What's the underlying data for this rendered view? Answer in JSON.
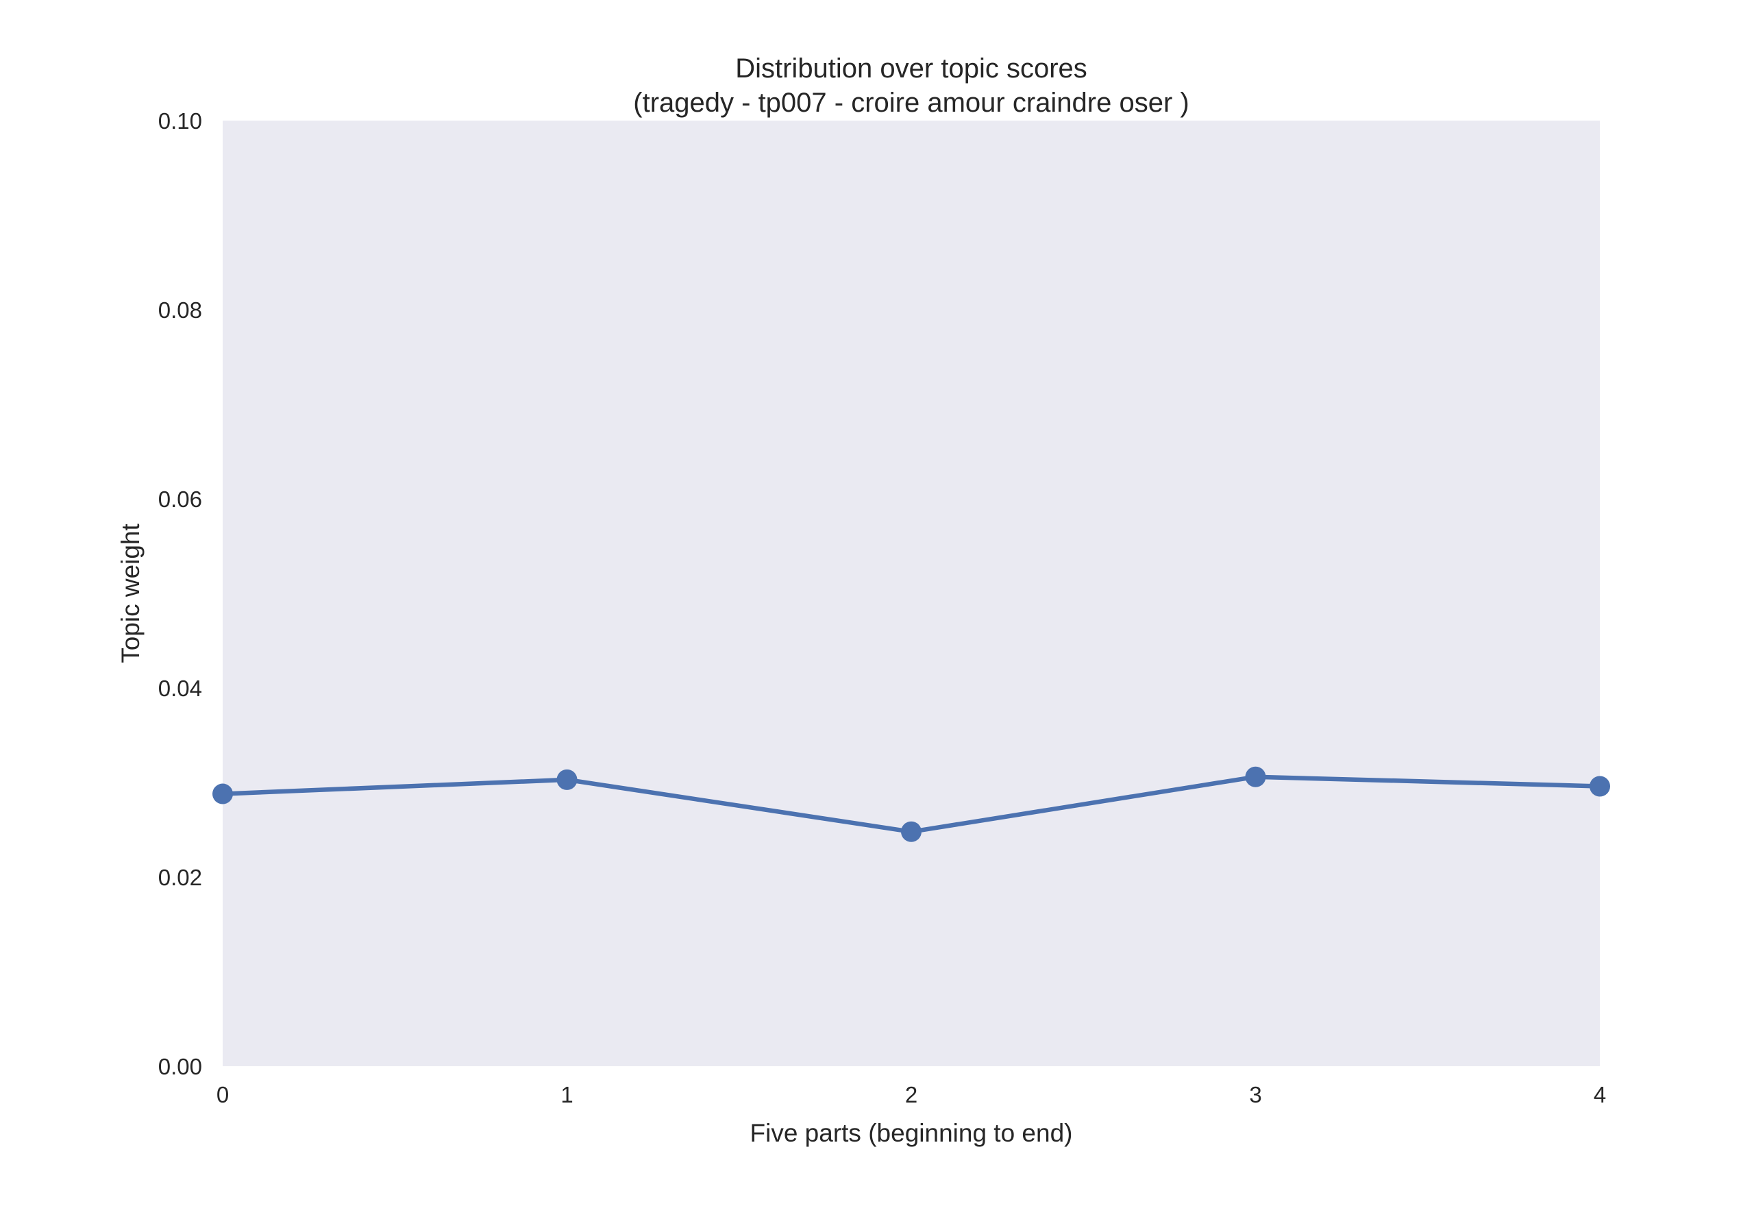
{
  "chart_data": {
    "type": "line",
    "title": "Distribution over topic scores",
    "subtitle": "(tragedy - tp007 - croire amour craindre oser )",
    "xlabel": "Five parts (beginning to end)",
    "ylabel": "Topic weight",
    "x": [
      0,
      1,
      2,
      3,
      4
    ],
    "x_tick_labels": [
      "0",
      "1",
      "2",
      "3",
      "4"
    ],
    "xlim": [
      0,
      4
    ],
    "ylim": [
      0,
      0.1
    ],
    "y_tick_labels": [
      "0.00",
      "0.02",
      "0.04",
      "0.06",
      "0.08",
      "0.10"
    ],
    "y_ticks": [
      0,
      0.02,
      0.04,
      0.06,
      0.08,
      0.1
    ],
    "series": [
      {
        "values": [
          0.0288,
          0.0303,
          0.0248,
          0.0306,
          0.0296
        ]
      }
    ],
    "grid": false,
    "legend": "none",
    "colors": {
      "plot_background": "#eaeaf2",
      "line": "#4c72b0",
      "text": "#262626"
    }
  }
}
